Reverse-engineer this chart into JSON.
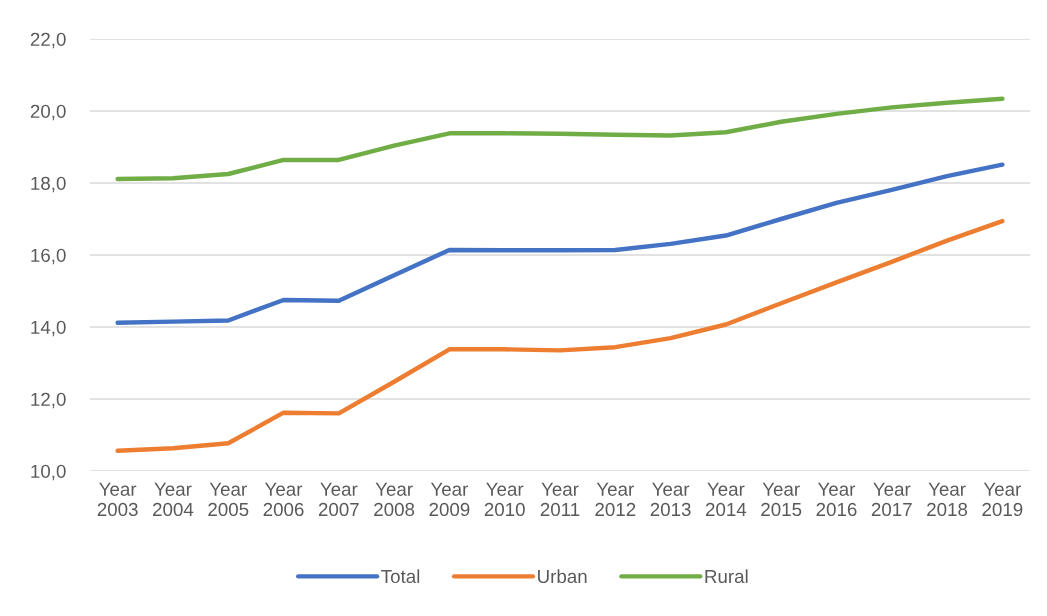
{
  "chart_data": {
    "type": "line",
    "categories": [
      "Year 2003",
      "Year 2004",
      "Year 2005",
      "Year 2006",
      "Year 2007",
      "Year 2008",
      "Year 2009",
      "Year 2010",
      "Year 2011",
      "Year 2012",
      "Year 2013",
      "Year 2014",
      "Year 2015",
      "Year 2016",
      "Year 2017",
      "Year 2018",
      "Year 2019"
    ],
    "series": [
      {
        "name": "Total",
        "color": "#4472c4",
        "values": [
          14.12,
          14.15,
          14.18,
          14.75,
          14.73,
          15.44,
          16.14,
          16.13,
          16.13,
          16.14,
          16.31,
          16.54,
          17.0,
          17.45,
          17.81,
          18.19,
          18.51
        ]
      },
      {
        "name": "Urban",
        "color": "#ed7d31",
        "values": [
          10.56,
          10.63,
          10.77,
          11.62,
          11.6,
          12.48,
          13.38,
          13.38,
          13.35,
          13.44,
          13.69,
          14.07,
          14.66,
          15.24,
          15.81,
          16.4,
          16.94
        ]
      },
      {
        "name": "Rural",
        "color": "#70ad47",
        "values": [
          18.11,
          18.13,
          18.25,
          18.64,
          18.64,
          19.04,
          19.38,
          19.38,
          19.37,
          19.34,
          19.32,
          19.41,
          19.7,
          19.92,
          20.1,
          20.23,
          20.34
        ]
      }
    ],
    "ylim": [
      10,
      22
    ],
    "yticks": [
      {
        "value": 10,
        "label": "10,0"
      },
      {
        "value": 12,
        "label": "12,0"
      },
      {
        "value": 14,
        "label": "14,0"
      },
      {
        "value": 16,
        "label": "16,0"
      },
      {
        "value": 18,
        "label": "18,0"
      },
      {
        "value": 20,
        "label": "20,0"
      },
      {
        "value": 22,
        "label": "22,0"
      }
    ],
    "grid": "y",
    "legend": "bottom",
    "marker": "none",
    "line_style": "solid"
  }
}
